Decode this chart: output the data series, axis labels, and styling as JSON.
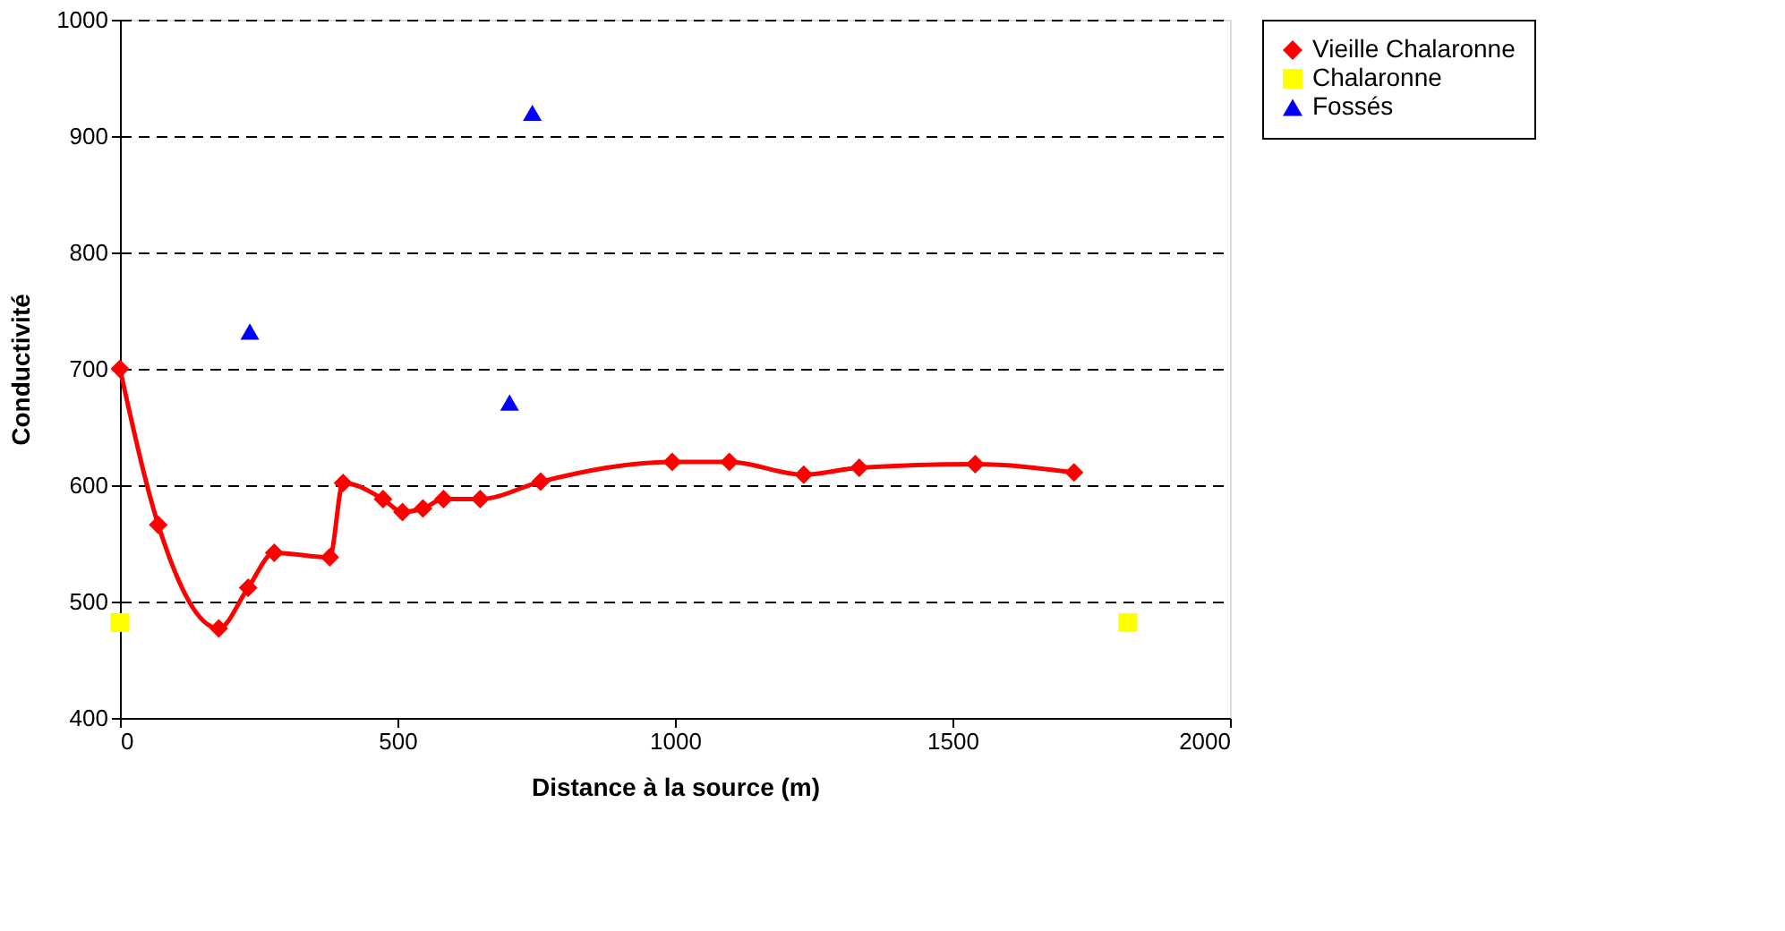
{
  "chart_data": {
    "type": "scatter",
    "xlabel": "Distance à la source (m)",
    "ylabel": "Conductivité",
    "xlim": [
      0,
      2000
    ],
    "xticks": [
      0,
      500,
      1000,
      1500,
      2000
    ],
    "ylim": [
      400,
      1000
    ],
    "yticks": [
      400,
      500,
      600,
      700,
      800,
      900,
      1000
    ],
    "grid": "y",
    "legend": "right",
    "series": [
      {
        "name": "Vieille Chalaronne",
        "type": "line",
        "marker": "diamond",
        "color": "#ff0000",
        "x": [
          0,
          69,
          178,
          231,
          278,
          378,
          402,
          474,
          509,
          546,
          583,
          649,
          758,
          995,
          1098,
          1232,
          1332,
          1541,
          1719
        ],
        "values": [
          700,
          566,
          477,
          512,
          542,
          538,
          602,
          588,
          577,
          580,
          588,
          588,
          603,
          620,
          620,
          609,
          615,
          618,
          611
        ]
      },
      {
        "name": "Chalaronne",
        "marker": "square",
        "color": "#ffff00",
        "x": [
          0,
          1816
        ],
        "values": [
          482,
          482
        ]
      },
      {
        "name": "Fossés",
        "marker": "triangle",
        "color": "#0000ff",
        "x": [
          234,
          702,
          743
        ],
        "values": [
          732,
          671,
          920
        ]
      }
    ]
  }
}
